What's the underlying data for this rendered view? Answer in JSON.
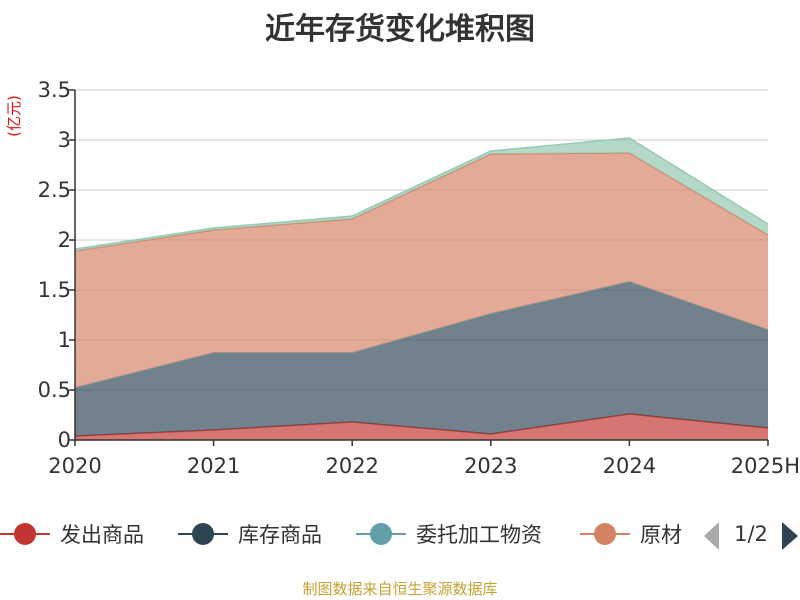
{
  "chart_data": {
    "type": "area",
    "title": "近年存货变化堆积图",
    "ylabel": "(亿元)",
    "categories": [
      "2020",
      "2021",
      "2022",
      "2023",
      "2024",
      "2025H"
    ],
    "ylim": [
      0,
      3.5
    ],
    "yticks": [
      "0",
      "0.5",
      "1",
      "1.5",
      "2",
      "2.5",
      "3",
      "3.5"
    ],
    "grid": true,
    "stacked": true,
    "series": [
      {
        "name": "发出商品",
        "color": "#c23531",
        "values": [
          0.04,
          0.1,
          0.18,
          0.06,
          0.26,
          0.12
        ]
      },
      {
        "name": "库存商品",
        "color": "#2f4554",
        "values": [
          0.48,
          0.77,
          0.69,
          1.2,
          1.32,
          0.98
        ]
      },
      {
        "name": "委托加工物资",
        "color": "#61a0a8",
        "values": [
          0.0,
          0.0,
          0.0,
          0.0,
          0.0,
          0.0
        ]
      },
      {
        "name": "原材料",
        "color": "#d48265",
        "values": [
          1.37,
          1.23,
          1.34,
          1.6,
          1.29,
          0.95
        ]
      },
      {
        "name": "",
        "color": "#91c7ae",
        "values": [
          0.02,
          0.02,
          0.03,
          0.03,
          0.15,
          0.11
        ]
      }
    ],
    "legend": {
      "position": "bottom",
      "items": [
        "发出商品",
        "库存商品",
        "委托加工物资",
        "原材"
      ],
      "page": "1/2"
    }
  },
  "footer": "制图数据来自恒生聚源数据库"
}
